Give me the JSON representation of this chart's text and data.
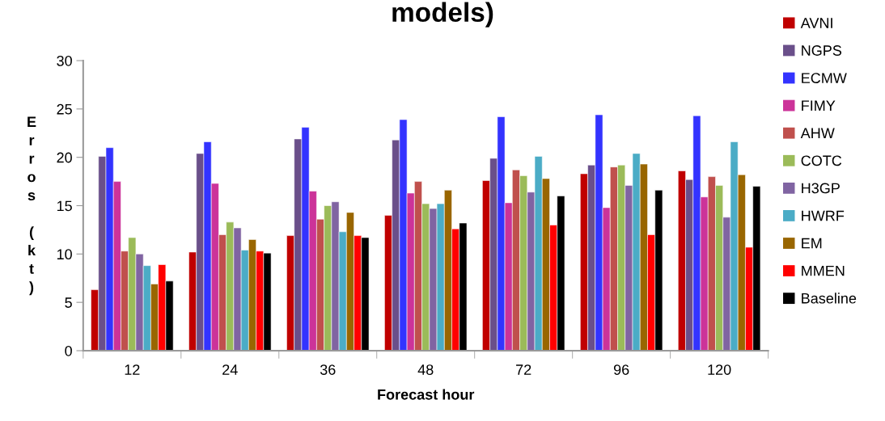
{
  "chart_data": {
    "type": "bar",
    "title": "models)",
    "xlabel": "Forecast hour",
    "ylabel": "Erros (kt)",
    "categories": [
      "12",
      "24",
      "36",
      "48",
      "72",
      "96",
      "120"
    ],
    "ylim": [
      0,
      30
    ],
    "yticks": [
      0,
      5,
      10,
      15,
      20,
      25,
      30
    ],
    "grid": false,
    "legend": "right",
    "series": [
      {
        "name": "AVNI",
        "color": "#c00000",
        "values": [
          6.3,
          10.2,
          11.9,
          14.0,
          17.6,
          18.3,
          18.6
        ]
      },
      {
        "name": "NGPS",
        "color": "#6a4f8a",
        "values": [
          20.1,
          20.4,
          21.9,
          21.8,
          19.9,
          19.2,
          17.7
        ]
      },
      {
        "name": "ECMW",
        "color": "#3333ff",
        "values": [
          21.0,
          21.6,
          23.1,
          23.9,
          24.2,
          24.4,
          24.3
        ]
      },
      {
        "name": "FIMY",
        "color": "#cc3399",
        "values": [
          17.5,
          17.3,
          16.5,
          16.3,
          15.3,
          14.8,
          15.9
        ]
      },
      {
        "name": "AHW",
        "color": "#c0504d",
        "values": [
          10.3,
          12.0,
          13.6,
          17.5,
          18.7,
          19.0,
          18.0
        ]
      },
      {
        "name": "COTC",
        "color": "#9bbb59",
        "values": [
          11.7,
          13.3,
          15.0,
          15.2,
          18.1,
          19.2,
          17.1
        ]
      },
      {
        "name": "H3GP",
        "color": "#8064a2",
        "values": [
          10.0,
          12.7,
          15.4,
          14.7,
          16.4,
          17.1,
          13.8
        ]
      },
      {
        "name": "HWRF",
        "color": "#4bacc6",
        "values": [
          8.8,
          10.4,
          12.3,
          15.2,
          20.1,
          20.4,
          21.6
        ]
      },
      {
        "name": "EM",
        "color": "#996600",
        "values": [
          6.9,
          11.5,
          14.3,
          16.6,
          17.8,
          19.3,
          18.2
        ]
      },
      {
        "name": "MMEN",
        "color": "#ff0000",
        "values": [
          8.9,
          10.3,
          11.9,
          12.6,
          13.0,
          12.0,
          10.7
        ]
      },
      {
        "name": "Baseline",
        "color": "#000000",
        "values": [
          7.2,
          10.1,
          11.7,
          13.2,
          16.0,
          16.6,
          17.0
        ]
      }
    ]
  }
}
